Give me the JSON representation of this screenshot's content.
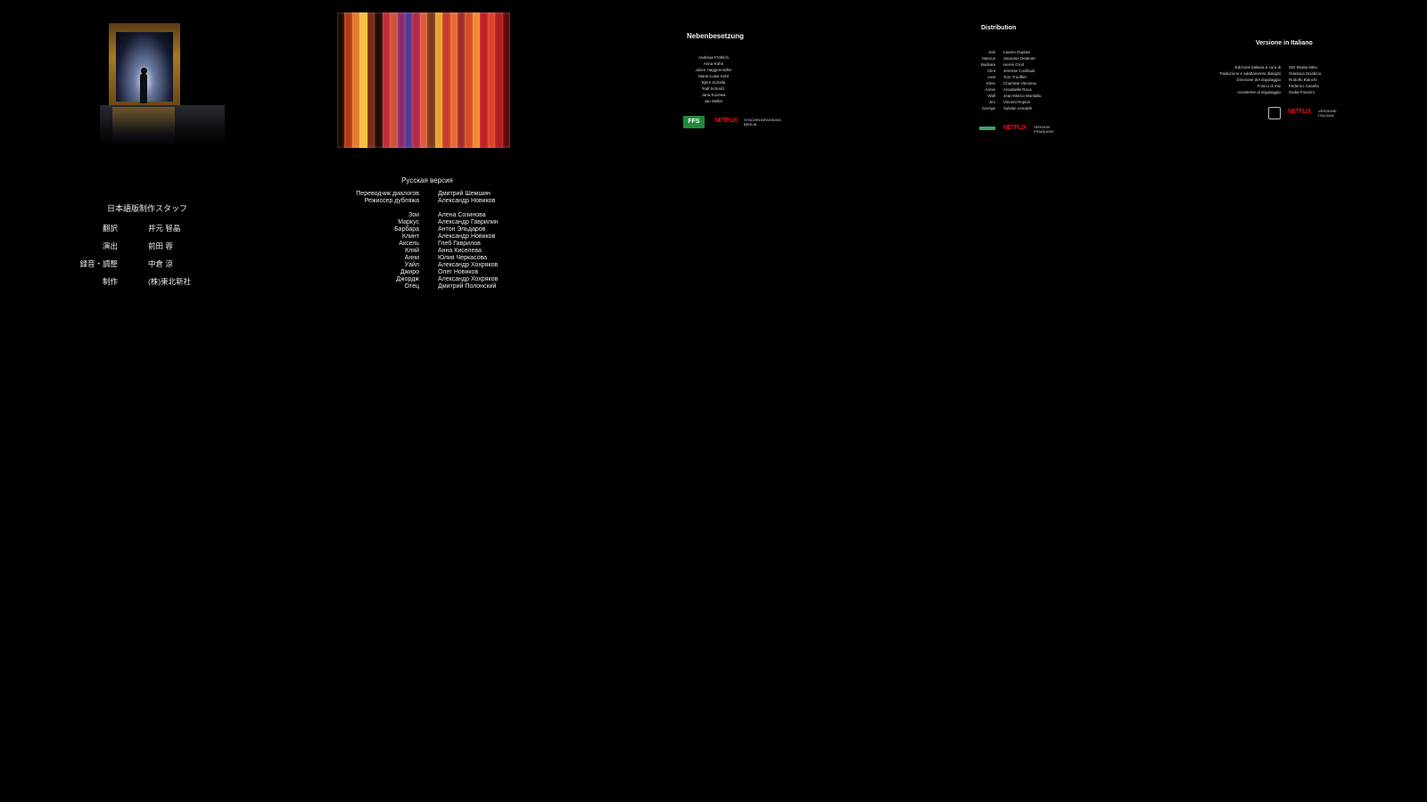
{
  "japanese_credits": {
    "title": "日本語版制作スタッフ",
    "rows": [
      {
        "role": "翻訳",
        "name": "井元 智晶"
      },
      {
        "role": "演出",
        "name": "前田 蓉"
      },
      {
        "role": "録音・調整",
        "name": "中倉 涼"
      },
      {
        "role": "制作",
        "name": "(株)東北新社"
      }
    ]
  },
  "russian_credits": {
    "title": "Русская версия",
    "staff": [
      {
        "role": "Переводчик диалогов",
        "name": "Дмитрий Шемшин"
      },
      {
        "role": "Режиссер дубляжа",
        "name": "Александр Новиков"
      }
    ],
    "cast": [
      {
        "role": "Зои",
        "name": "Алена Созинова"
      },
      {
        "role": "Маркус",
        "name": "Александр Гаврилин"
      },
      {
        "role": "Барбара",
        "name": "Антон Эльдаров"
      },
      {
        "role": "Клинт",
        "name": "Александр Новиков"
      },
      {
        "role": "Аксель",
        "name": "Глеб Гаврилов"
      },
      {
        "role": "Кляй",
        "name": "Анна Киселева"
      },
      {
        "role": "Анни",
        "name": "Юлия Черкасова"
      },
      {
        "role": "Уайл",
        "name": "Александр Хохряков"
      },
      {
        "role": "Джиро",
        "name": "Олег Новиков"
      },
      {
        "role": "Джордж",
        "name": "Александр Хохряков"
      },
      {
        "role": "Отец",
        "name": "Дмитрий Полонский"
      }
    ]
  },
  "german_credits": {
    "title": "Nebenbesetzung",
    "names": [
      "Andreas Fröhlich",
      "Anna Kühn",
      "Julien Haggenmüller",
      "Marie-Luise Kühl",
      "Björn Schalla",
      "Ralf Schmitz",
      "Jana Kozewa",
      "Jan Müller"
    ],
    "logo_ffs": "FFS",
    "logo_netflix": "NETFLIX",
    "logo_small": "SYNCHRONFASSUNG BERLIN"
  },
  "french_credits": {
    "title": "Distribution",
    "rows": [
      {
        "role": "Zoé",
        "name": "Lauren Duplaix"
      },
      {
        "role": "Marcus",
        "name": "Sauvane Delanoë"
      },
      {
        "role": "Barbara",
        "name": "Hervé Grull"
      },
      {
        "role": "Clint",
        "name": "Jérémie Covillault"
      },
      {
        "role": "Axel",
        "name": "Tom Trouffier"
      },
      {
        "role": "Klein",
        "name": "Charlotte Hervieux"
      },
      {
        "role": "Annie",
        "name": "Annabelle Roux"
      },
      {
        "role": "Wall",
        "name": "Jean-Marco Montalto"
      },
      {
        "role": "Jiro",
        "name": "Vincent Ropion"
      },
      {
        "role": "George",
        "name": "Sylvain Lemarié"
      }
    ],
    "logo_netflix": "NETFLIX",
    "logo_small": "VERSION FRANÇAISE"
  },
  "italian_credits": {
    "title": "Versione in Italiano",
    "rows": [
      {
        "role": "Edizione italiana a cura di",
        "name": "SDI Media Italia"
      },
      {
        "role": "Traduzione e adattamento dialoghi",
        "name": "Gianluca Sciabica"
      },
      {
        "role": "Direzione del doppiaggio",
        "name": "Rodolfo Bianchi"
      },
      {
        "role": "Fonico di mix",
        "name": "Federico Casella"
      },
      {
        "role": "Assistente al doppiaggio",
        "name": "Giulia Franzini"
      }
    ],
    "logo_netflix": "NETFLIX",
    "logo_small": "VERSIONE ITALIANA"
  },
  "stripes": [
    "#1a0a04",
    "#b43a14",
    "#e8782a",
    "#f4c040",
    "#7a2a10",
    "#240a08",
    "#c02a30",
    "#d0503a",
    "#8a2a6a",
    "#4a3aa0",
    "#b02a48",
    "#e0583a",
    "#7a3a18",
    "#f0a030",
    "#c83a2a",
    "#e86a2a",
    "#a02a28",
    "#d84a20",
    "#f08a30",
    "#c02020",
    "#e0402a",
    "#b01a1a",
    "#600808"
  ]
}
